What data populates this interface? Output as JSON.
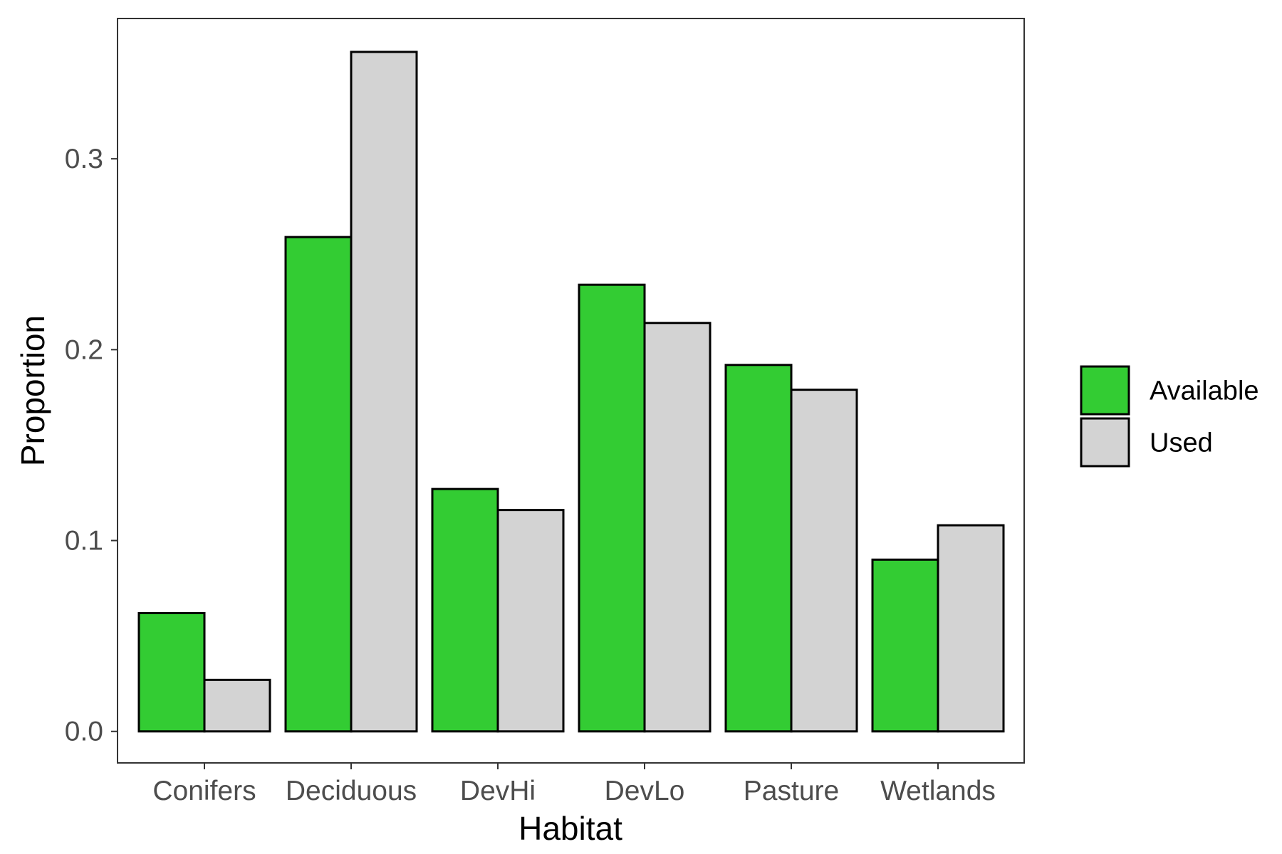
{
  "chart_data": {
    "type": "bar",
    "title": "",
    "xlabel": "Habitat",
    "ylabel": "Proportion",
    "categories": [
      "Conifers",
      "Deciduous",
      "DevHi",
      "DevLo",
      "Pasture",
      "Wetlands"
    ],
    "series": [
      {
        "name": "Available",
        "color": "#33cc33",
        "values": [
          0.062,
          0.259,
          0.127,
          0.234,
          0.192,
          0.09
        ]
      },
      {
        "name": "Used",
        "color": "#d3d3d3",
        "values": [
          0.027,
          0.356,
          0.116,
          0.214,
          0.179,
          0.108
        ]
      }
    ],
    "ylim": [
      -0.0165,
      0.3735
    ],
    "yticks": [
      0.0,
      0.1,
      0.2,
      0.3
    ],
    "ytick_labels": [
      "0.0",
      "0.1",
      "0.2",
      "0.3"
    ],
    "grid": false,
    "legend_position": "right",
    "bar_outline_color": "#000000",
    "panel_border_color": "#333333"
  }
}
